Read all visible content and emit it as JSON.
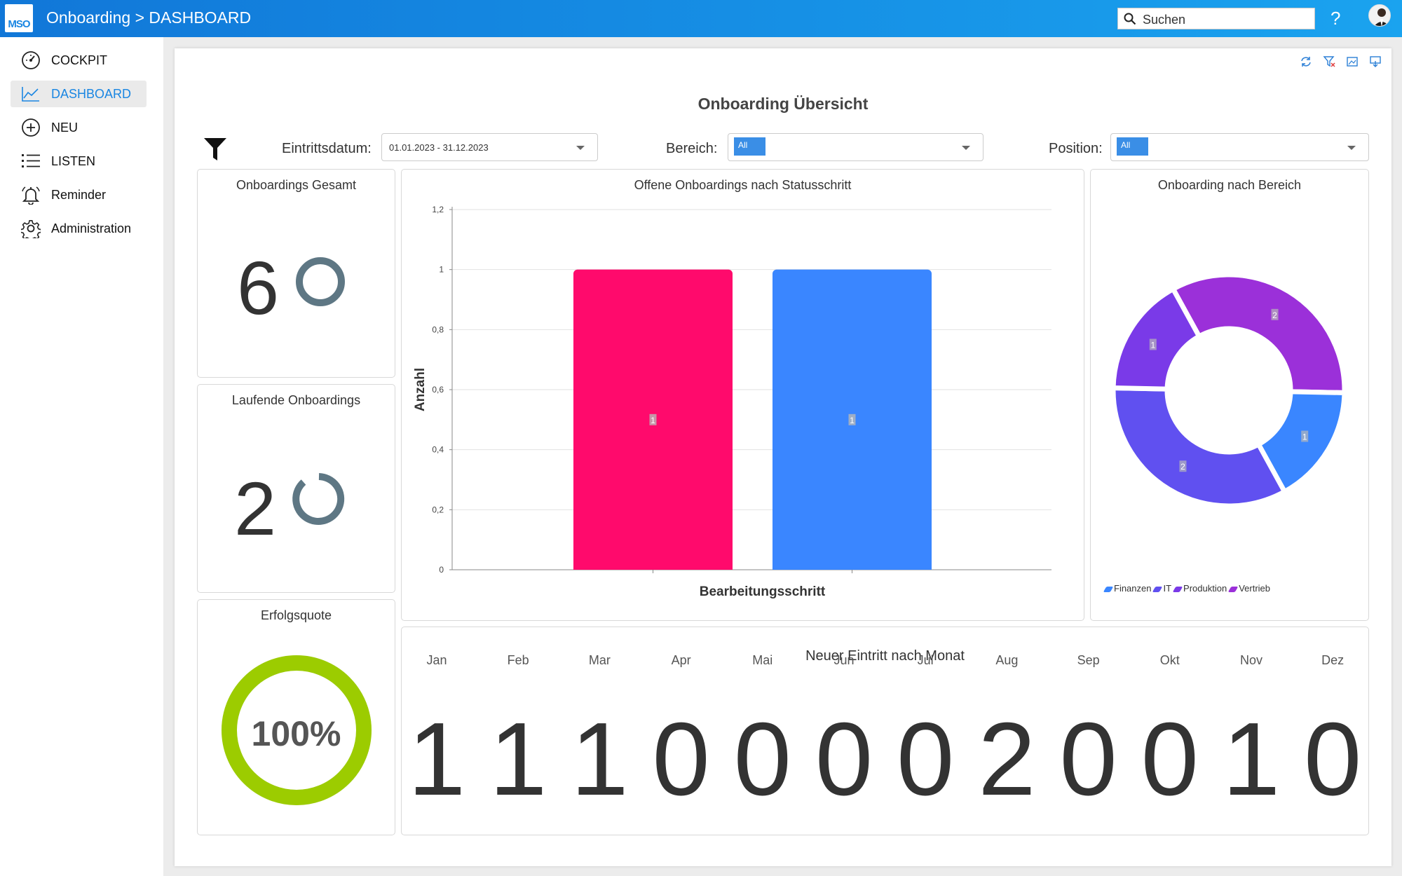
{
  "header": {
    "logo_text": "MSO",
    "breadcrumb": "Onboarding > DASHBOARD",
    "search_placeholder": "Suchen",
    "help_label": "?"
  },
  "sidebar": {
    "items": [
      {
        "label": "COCKPIT",
        "icon": "gauge-icon"
      },
      {
        "label": "DASHBOARD",
        "icon": "chart-line-icon",
        "active": true
      },
      {
        "label": "NEU",
        "icon": "plus-circle-icon"
      },
      {
        "label": "LISTEN",
        "icon": "list-icon"
      },
      {
        "label": "Reminder",
        "icon": "bell-icon"
      },
      {
        "label": "Administration",
        "icon": "gear-icon"
      }
    ]
  },
  "dashboard": {
    "title": "Onboarding Übersicht",
    "filters": {
      "date_label": "Eintrittsdatum:",
      "date_value": "01.01.2023 - 31.12.2023",
      "area_label": "Bereich:",
      "area_value": "All",
      "position_label": "Position:",
      "position_value": "All"
    },
    "kpis": {
      "total_title": "Onboardings Gesamt",
      "total_value": "6",
      "running_title": "Laufende Onboardings",
      "running_value": "2",
      "success_title": "Erfolgsquote",
      "success_value": "100%",
      "success_fraction": 1.0
    },
    "monthly": {
      "title": "Neuer Eintritt nach Monat",
      "months": [
        "Jan",
        "Feb",
        "Mar",
        "Apr",
        "Mai",
        "Jun",
        "Jul",
        "Aug",
        "Sep",
        "Okt",
        "Nov",
        "Dez"
      ],
      "values": [
        "1",
        "1",
        "1",
        "0",
        "0",
        "0",
        "0",
        "2",
        "0",
        "0",
        "1",
        "0"
      ]
    }
  },
  "chart_data": [
    {
      "type": "bar",
      "title": "Offene Onboardings nach Statusschritt",
      "xlabel": "Bearbeitungsschritt",
      "ylabel": "Anzahl",
      "ylim": [
        0,
        1.2
      ],
      "yticks": [
        "0",
        "0,2",
        "0,4",
        "0,6",
        "0,8",
        "1",
        "1,2"
      ],
      "values": [
        1,
        1
      ],
      "bar_labels": [
        "1",
        "1"
      ],
      "colors": [
        "#ff0a6c",
        "#3a86ff"
      ],
      "grid": true
    },
    {
      "type": "pie",
      "title": "Onboarding nach Bereich",
      "donut": true,
      "slices": [
        {
          "name": "Vertrieb",
          "value": 2,
          "color": "#9b30d9"
        },
        {
          "name": "Finanzen",
          "value": 1,
          "color": "#3a86ff"
        },
        {
          "name": "IT",
          "value": 2,
          "color": "#6050f0"
        },
        {
          "name": "Produktion",
          "value": 1,
          "color": "#7a3ae8"
        }
      ],
      "legend": [
        {
          "name": "Finanzen",
          "color": "#3a86ff"
        },
        {
          "name": "IT",
          "color": "#6050f0"
        },
        {
          "name": "Produktion",
          "color": "#7a3ae8"
        },
        {
          "name": "Vertrieb",
          "color": "#9b30d9"
        }
      ],
      "legend_position": "bottom-left"
    }
  ]
}
